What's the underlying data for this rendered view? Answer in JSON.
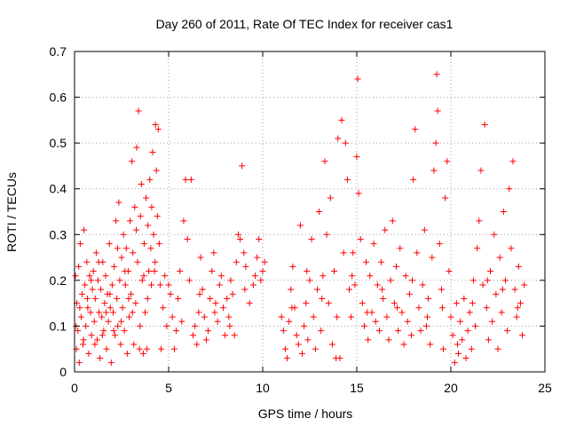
{
  "chart_data": {
    "type": "scatter",
    "title": "Day 260 of 2011, Rate Of TEC Index for receiver cas1",
    "xlabel": "GPS time / hours",
    "ylabel": "ROTI / TECUs",
    "xlim": [
      0,
      25
    ],
    "ylim": [
      0,
      0.7
    ],
    "xticks": [
      0,
      5,
      10,
      15,
      20,
      25
    ],
    "yticks": [
      0,
      0.1,
      0.2,
      0.3,
      0.4,
      0.5,
      0.6,
      0.7
    ],
    "grid": true,
    "marker": "+",
    "color": "#ff0000",
    "series": [
      {
        "points": [
          [
            0.05,
            0.21
          ],
          [
            0.1,
            0.05
          ],
          [
            0.12,
            0.15
          ],
          [
            0.18,
            0.09
          ],
          [
            0.22,
            0.23
          ],
          [
            0.25,
            0.02
          ],
          [
            0.3,
            0.28
          ],
          [
            0.35,
            0.12
          ],
          [
            0.4,
            0.17
          ],
          [
            0.45,
            0.06
          ],
          [
            0.5,
            0.31
          ],
          [
            0.55,
            0.19
          ],
          [
            0.6,
            0.1
          ],
          [
            0.65,
            0.24
          ],
          [
            0.7,
            0.14
          ],
          [
            0.75,
            0.04
          ],
          [
            0.8,
            0.21
          ],
          [
            0.85,
            0.13
          ],
          [
            0.9,
            0.08
          ],
          [
            0.95,
            0.18
          ],
          [
            1.0,
            0.22
          ],
          [
            1.05,
            0.11
          ],
          [
            1.1,
            0.16
          ],
          [
            1.15,
            0.26
          ],
          [
            1.2,
            0.07
          ],
          [
            1.25,
            0.2
          ],
          [
            1.3,
            0.13
          ],
          [
            1.35,
            0.03
          ],
          [
            1.4,
            0.18
          ],
          [
            1.45,
            0.12
          ],
          [
            1.5,
            0.24
          ],
          [
            1.55,
            0.09
          ],
          [
            1.6,
            0.15
          ],
          [
            1.65,
            0.21
          ],
          [
            1.7,
            0.05
          ],
          [
            1.75,
            0.17
          ],
          [
            1.8,
            0.11
          ],
          [
            1.85,
            0.28
          ],
          [
            1.9,
            0.14
          ],
          [
            1.95,
            0.02
          ],
          [
            2.0,
            0.19
          ],
          [
            2.05,
            0.13
          ],
          [
            2.1,
            0.23
          ],
          [
            2.15,
            0.08
          ],
          [
            2.2,
            0.33
          ],
          [
            2.25,
            0.16
          ],
          [
            2.3,
            0.1
          ],
          [
            2.35,
            0.37
          ],
          [
            2.4,
            0.2
          ],
          [
            2.45,
            0.06
          ],
          [
            2.5,
            0.25
          ],
          [
            2.55,
            0.14
          ],
          [
            2.6,
            0.3
          ],
          [
            2.65,
            0.09
          ],
          [
            2.7,
            0.19
          ],
          [
            2.75,
            0.27
          ],
          [
            2.8,
            0.04
          ],
          [
            2.85,
            0.22
          ],
          [
            2.9,
            0.12
          ],
          [
            2.95,
            0.33
          ],
          [
            3.0,
            0.17
          ],
          [
            3.05,
            0.46
          ],
          [
            3.1,
            0.26
          ],
          [
            3.15,
            0.06
          ],
          [
            3.2,
            0.36
          ],
          [
            3.25,
            0.15
          ],
          [
            3.3,
            0.49
          ],
          [
            3.35,
            0.24
          ],
          [
            3.4,
            0.57
          ],
          [
            3.45,
            0.05
          ],
          [
            3.5,
            0.34
          ],
          [
            3.55,
            0.41
          ],
          [
            3.6,
            0.2
          ],
          [
            3.65,
            0.04
          ],
          [
            3.7,
            0.28
          ],
          [
            3.75,
            0.13
          ],
          [
            3.8,
            0.38
          ],
          [
            3.85,
            0.05
          ],
          [
            3.9,
            0.32
          ],
          [
            3.95,
            0.22
          ],
          [
            4.0,
            0.42
          ],
          [
            4.05,
            0.27
          ],
          [
            4.1,
            0.36
          ],
          [
            4.15,
            0.48
          ],
          [
            4.2,
            0.3
          ],
          [
            4.25,
            0.22
          ],
          [
            4.3,
            0.54
          ],
          [
            4.35,
            0.44
          ],
          [
            4.4,
            0.34
          ],
          [
            4.45,
            0.53
          ],
          [
            4.5,
            0.28
          ],
          [
            4.55,
            0.19
          ],
          [
            4.6,
            0.05
          ],
          [
            4.7,
            0.14
          ],
          [
            4.8,
            0.21
          ],
          [
            4.9,
            0.1
          ],
          [
            5.0,
            0.19
          ],
          [
            5.1,
            0.17
          ],
          [
            5.2,
            0.12
          ],
          [
            5.3,
            0.05
          ],
          [
            5.4,
            0.09
          ],
          [
            5.5,
            0.16
          ],
          [
            5.6,
            0.22
          ],
          [
            5.7,
            0.11
          ],
          [
            5.8,
            0.33
          ],
          [
            5.9,
            0.42
          ],
          [
            6.0,
            0.29
          ],
          [
            6.1,
            0.2
          ],
          [
            6.2,
            0.42
          ],
          [
            6.3,
            0.08
          ],
          [
            6.4,
            0.1
          ],
          [
            6.5,
            0.06
          ],
          [
            6.6,
            0.13
          ],
          [
            6.7,
            0.25
          ],
          [
            6.8,
            0.18
          ],
          [
            6.9,
            0.12
          ],
          [
            7.0,
            0.07
          ],
          [
            7.1,
            0.09
          ],
          [
            7.2,
            0.16
          ],
          [
            7.3,
            0.22
          ],
          [
            7.4,
            0.26
          ],
          [
            7.5,
            0.15
          ],
          [
            7.6,
            0.11
          ],
          [
            7.7,
            0.19
          ],
          [
            7.8,
            0.21
          ],
          [
            7.9,
            0.14
          ],
          [
            8.0,
            0.08
          ],
          [
            8.1,
            0.16
          ],
          [
            8.2,
            0.12
          ],
          [
            8.3,
            0.2
          ],
          [
            8.4,
            0.17
          ],
          [
            8.5,
            0.08
          ],
          [
            8.6,
            0.24
          ],
          [
            8.7,
            0.3
          ],
          [
            8.8,
            0.29
          ],
          [
            8.9,
            0.45
          ],
          [
            9.0,
            0.26
          ],
          [
            9.1,
            0.23
          ],
          [
            9.3,
            0.15
          ],
          [
            9.5,
            0.19
          ],
          [
            9.6,
            0.21
          ],
          [
            9.7,
            0.25
          ],
          [
            9.8,
            0.29
          ],
          [
            9.9,
            0.2
          ],
          [
            10.0,
            0.22
          ],
          [
            10.1,
            0.24
          ],
          [
            11.0,
            0.12
          ],
          [
            11.1,
            0.09
          ],
          [
            11.2,
            0.05
          ],
          [
            11.3,
            0.03
          ],
          [
            11.4,
            0.11
          ],
          [
            11.5,
            0.18
          ],
          [
            11.6,
            0.23
          ],
          [
            11.7,
            0.14
          ],
          [
            11.8,
            0.08
          ],
          [
            11.9,
            0.06
          ],
          [
            12.0,
            0.32
          ],
          [
            12.1,
            0.04
          ],
          [
            12.2,
            0.1
          ],
          [
            12.3,
            0.15
          ],
          [
            12.4,
            0.07
          ],
          [
            12.5,
            0.2
          ],
          [
            12.6,
            0.29
          ],
          [
            12.7,
            0.12
          ],
          [
            12.8,
            0.05
          ],
          [
            12.9,
            0.18
          ],
          [
            13.0,
            0.35
          ],
          [
            13.1,
            0.09
          ],
          [
            13.2,
            0.21
          ],
          [
            13.3,
            0.46
          ],
          [
            13.4,
            0.3
          ],
          [
            13.5,
            0.15
          ],
          [
            13.6,
            0.38
          ],
          [
            13.7,
            0.06
          ],
          [
            13.8,
            0.22
          ],
          [
            13.9,
            0.03
          ],
          [
            14.0,
            0.51
          ],
          [
            14.1,
            0.03
          ],
          [
            14.2,
            0.55
          ],
          [
            14.3,
            0.26
          ],
          [
            14.4,
            0.5
          ],
          [
            14.5,
            0.42
          ],
          [
            14.6,
            0.18
          ],
          [
            14.7,
            0.12
          ],
          [
            14.8,
            0.26
          ],
          [
            14.9,
            0.19
          ],
          [
            15.0,
            0.47
          ],
          [
            15.05,
            0.64
          ],
          [
            15.1,
            0.39
          ],
          [
            15.2,
            0.29
          ],
          [
            15.3,
            0.15
          ],
          [
            15.4,
            0.1
          ],
          [
            15.5,
            0.24
          ],
          [
            15.6,
            0.07
          ],
          [
            15.7,
            0.21
          ],
          [
            15.8,
            0.13
          ],
          [
            15.9,
            0.28
          ],
          [
            16.0,
            0.11
          ],
          [
            16.1,
            0.19
          ],
          [
            16.2,
            0.09
          ],
          [
            16.3,
            0.24
          ],
          [
            16.4,
            0.16
          ],
          [
            16.5,
            0.31
          ],
          [
            16.6,
            0.12
          ],
          [
            16.7,
            0.07
          ],
          [
            16.8,
            0.2
          ],
          [
            16.9,
            0.33
          ],
          [
            17.0,
            0.15
          ],
          [
            17.1,
            0.23
          ],
          [
            17.2,
            0.09
          ],
          [
            17.3,
            0.27
          ],
          [
            17.4,
            0.13
          ],
          [
            17.5,
            0.06
          ],
          [
            17.6,
            0.21
          ],
          [
            17.7,
            0.11
          ],
          [
            17.8,
            0.17
          ],
          [
            17.9,
            0.08
          ],
          [
            18.0,
            0.42
          ],
          [
            18.1,
            0.53
          ],
          [
            18.2,
            0.26
          ],
          [
            18.3,
            0.14
          ],
          [
            18.4,
            0.09
          ],
          [
            18.5,
            0.19
          ],
          [
            18.6,
            0.31
          ],
          [
            18.7,
            0.1
          ],
          [
            18.8,
            0.16
          ],
          [
            18.9,
            0.06
          ],
          [
            19.0,
            0.25
          ],
          [
            19.1,
            0.44
          ],
          [
            19.2,
            0.5
          ],
          [
            19.25,
            0.65
          ],
          [
            19.3,
            0.57
          ],
          [
            19.4,
            0.28
          ],
          [
            19.5,
            0.18
          ],
          [
            19.6,
            0.05
          ],
          [
            19.7,
            0.38
          ],
          [
            19.8,
            0.46
          ],
          [
            19.9,
            0.22
          ],
          [
            20.0,
            0.12
          ],
          [
            20.1,
            0.08
          ],
          [
            20.2,
            0.02
          ],
          [
            20.3,
            0.15
          ],
          [
            20.4,
            0.04
          ],
          [
            20.5,
            0.11
          ],
          [
            20.6,
            0.07
          ],
          [
            20.7,
            0.16
          ],
          [
            20.8,
            0.03
          ],
          [
            20.9,
            0.09
          ],
          [
            21.0,
            0.13
          ],
          [
            21.1,
            0.05
          ],
          [
            21.2,
            0.2
          ],
          [
            21.3,
            0.1
          ],
          [
            21.4,
            0.27
          ],
          [
            21.5,
            0.33
          ],
          [
            21.6,
            0.44
          ],
          [
            21.7,
            0.19
          ],
          [
            21.8,
            0.54
          ],
          [
            21.9,
            0.14
          ],
          [
            22.0,
            0.07
          ],
          [
            22.1,
            0.22
          ],
          [
            22.2,
            0.11
          ],
          [
            22.3,
            0.3
          ],
          [
            22.4,
            0.17
          ],
          [
            22.5,
            0.05
          ],
          [
            22.6,
            0.25
          ],
          [
            22.7,
            0.13
          ],
          [
            22.8,
            0.35
          ],
          [
            22.9,
            0.2
          ],
          [
            23.0,
            0.09
          ],
          [
            23.1,
            0.4
          ],
          [
            23.2,
            0.27
          ],
          [
            23.3,
            0.46
          ],
          [
            23.4,
            0.18
          ],
          [
            23.5,
            0.12
          ],
          [
            23.6,
            0.23
          ],
          [
            23.7,
            0.15
          ],
          [
            23.8,
            0.08
          ],
          [
            23.9,
            0.19
          ],
          [
            0.08,
            0.1
          ],
          [
            0.28,
            0.14
          ],
          [
            0.48,
            0.07
          ],
          [
            0.68,
            0.16
          ],
          [
            0.88,
            0.2
          ],
          [
            1.08,
            0.06
          ],
          [
            1.28,
            0.24
          ],
          [
            1.48,
            0.08
          ],
          [
            1.68,
            0.13
          ],
          [
            1.88,
            0.17
          ],
          [
            2.08,
            0.09
          ],
          [
            2.28,
            0.27
          ],
          [
            2.48,
            0.11
          ],
          [
            2.68,
            0.22
          ],
          [
            2.88,
            0.16
          ],
          [
            3.08,
            0.13
          ],
          [
            3.28,
            0.31
          ],
          [
            3.48,
            0.1
          ],
          [
            3.68,
            0.21
          ],
          [
            3.88,
            0.16
          ],
          [
            4.08,
            0.19
          ],
          [
            4.28,
            0.24
          ],
          [
            11.55,
            0.14
          ],
          [
            12.35,
            0.22
          ],
          [
            13.15,
            0.16
          ],
          [
            13.95,
            0.12
          ],
          [
            14.75,
            0.21
          ],
          [
            15.55,
            0.13
          ],
          [
            16.35,
            0.18
          ],
          [
            17.15,
            0.14
          ],
          [
            17.95,
            0.2
          ],
          [
            18.75,
            0.12
          ],
          [
            19.55,
            0.14
          ],
          [
            20.35,
            0.06
          ],
          [
            21.15,
            0.15
          ],
          [
            21.95,
            0.2
          ],
          [
            22.75,
            0.18
          ],
          [
            23.55,
            0.14
          ],
          [
            6.65,
            0.17
          ],
          [
            7.45,
            0.13
          ],
          [
            8.25,
            0.1
          ],
          [
            9.05,
            0.18
          ]
        ]
      }
    ]
  }
}
